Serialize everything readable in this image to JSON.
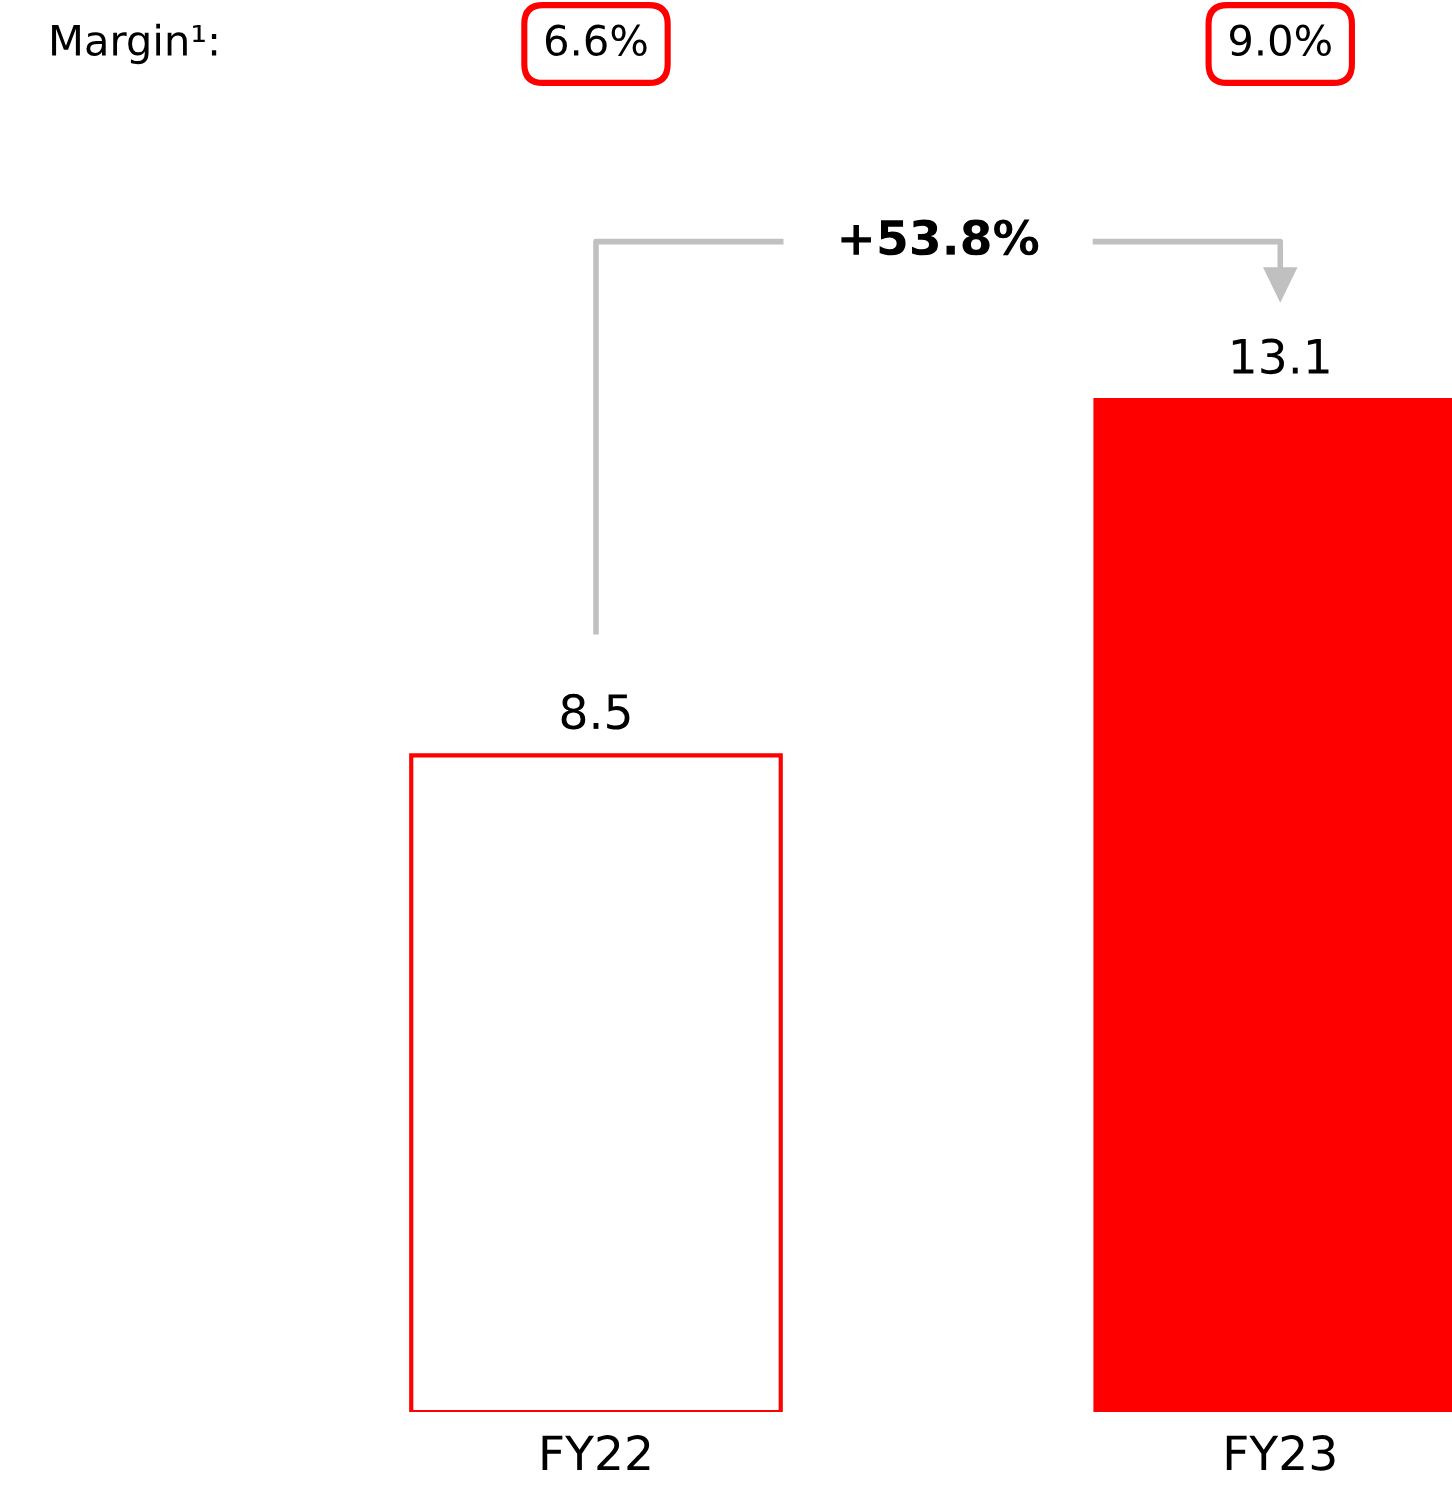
{
  "chart_data": {
    "type": "bar",
    "categories": [
      "FY22",
      "FY23"
    ],
    "values": [
      8.5,
      13.1
    ],
    "colors": [
      "#ffffff",
      "#ff0000"
    ],
    "data_labels": true,
    "annotations": [
      "Margin¹:",
      "6.6%",
      "9.0%",
      "+53.8%"
    ]
  }
}
